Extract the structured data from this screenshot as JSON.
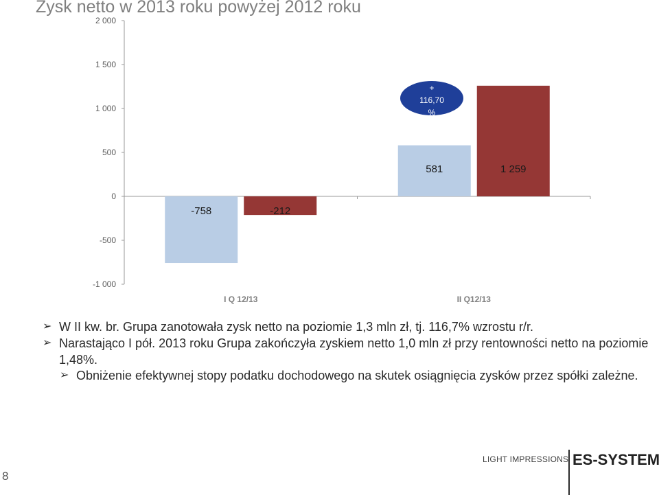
{
  "title": "Zysk netto w 2013 roku powyżej 2012 roku",
  "chart_data": {
    "type": "bar",
    "categories": [
      "I Q 12/13",
      "II Q12/13"
    ],
    "series": [
      {
        "values": [
          -758,
          581
        ],
        "color": "#b9cde5"
      },
      {
        "values": [
          -212,
          1259
        ],
        "color": "#953735"
      }
    ],
    "data_labels": [
      [
        "-758",
        "581"
      ],
      [
        "-212",
        "1 259"
      ]
    ],
    "ylim": [
      -1000,
      2000
    ],
    "yticks": [
      2000,
      1500,
      1000,
      500,
      0,
      -500,
      -1000
    ],
    "ytick_labels": [
      "2 000",
      "1 500",
      "1 000",
      "500",
      "0",
      "-500",
      "-1 000"
    ],
    "grid": false,
    "annotation": {
      "lines": [
        "+",
        "116,70",
        "%"
      ],
      "fill": "#1f3f99",
      "text_color": "#ffffff"
    }
  },
  "bullets": [
    {
      "text": "W II kw. br. Grupa zanotowała zysk netto na poziomie 1,3 mln zł, tj. 116,7% wzrostu r/r."
    },
    {
      "text": "Narastająco I pół. 2013 roku Grupa zakończyła zyskiem netto 1,0 mln zł przy rentowności netto na poziomie 1,48%."
    }
  ],
  "sub_bullets": [
    {
      "text": "Obniżenie efektywnej stopy podatku dochodowego na skutek osiągnięcia zysków przez spółki zależne."
    }
  ],
  "bullet_glyph": "➢",
  "footer": {
    "page_number": "8",
    "light_impressions": "LIGHT IMPRESSIONS",
    "logo": "ES-SYSTEM"
  }
}
